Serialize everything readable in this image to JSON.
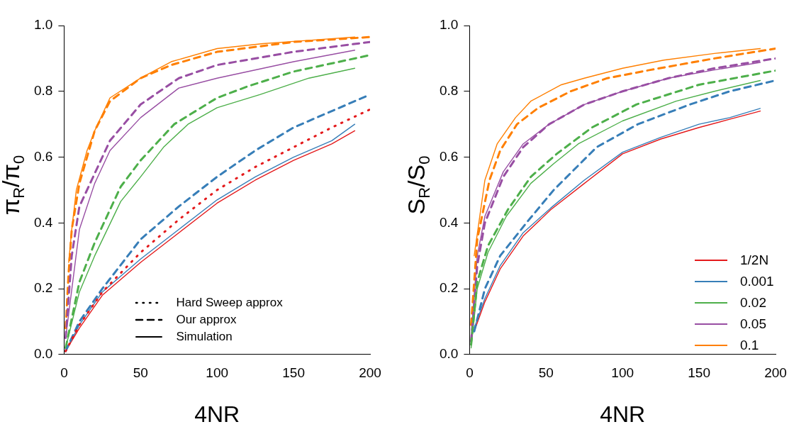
{
  "chart_data": [
    {
      "type": "line",
      "xlabel": "4NR",
      "ylabel": "π$_{R}$/π$_{0}$",
      "xlim": [
        0,
        200
      ],
      "xticks": [
        0,
        50,
        100,
        150,
        200
      ],
      "ylim": [
        0,
        1
      ],
      "yticks": [
        {
          "value": 0,
          "label": "0.0"
        },
        {
          "value": 0.2,
          "label": "0.2"
        },
        {
          "value": 0.4,
          "label": "0.4"
        },
        {
          "value": 0.6,
          "label": "0.6"
        },
        {
          "value": 0.8,
          "label": "0.8"
        },
        {
          "value": 1,
          "label": "1.0"
        }
      ],
      "grid": false,
      "legend": false,
      "marker": "none",
      "annotations": [
        "Hard Sweep approx",
        "Our approx",
        "Simulation"
      ],
      "series": [
        {
          "color": "#e41a1c",
          "line_style": "dotted",
          "x": [
            1,
            10,
            25,
            50,
            75,
            100,
            125,
            150,
            175,
            200
          ],
          "values": [
            0.01,
            0.09,
            0.19,
            0.31,
            0.41,
            0.5,
            0.57,
            0.63,
            0.69,
            0.745
          ]
        },
        {
          "color": "#377eb8",
          "line_style": "dashed",
          "x": [
            1,
            10,
            25,
            50,
            75,
            100,
            125,
            150,
            175,
            200
          ],
          "values": [
            0.01,
            0.1,
            0.2,
            0.35,
            0.45,
            0.54,
            0.62,
            0.69,
            0.74,
            0.79
          ]
        },
        {
          "color": "#4daf4a",
          "line_style": "dashed",
          "x": [
            1,
            10,
            20,
            37,
            50,
            72,
            100,
            120,
            150,
            200
          ],
          "values": [
            0.02,
            0.22,
            0.34,
            0.51,
            0.59,
            0.7,
            0.78,
            0.815,
            0.86,
            0.91
          ]
        },
        {
          "color": "#984ea3",
          "line_style": "dashed",
          "x": [
            1,
            5,
            10,
            20,
            30,
            50,
            75,
            100,
            150,
            200
          ],
          "values": [
            0.05,
            0.3,
            0.45,
            0.55,
            0.65,
            0.76,
            0.84,
            0.88,
            0.92,
            0.95
          ]
        },
        {
          "color": "#ff7f00",
          "line_style": "dashed",
          "x": [
            1,
            3,
            5,
            10,
            20,
            30,
            50,
            70,
            100,
            150,
            200
          ],
          "values": [
            0.08,
            0.25,
            0.38,
            0.52,
            0.68,
            0.77,
            0.84,
            0.88,
            0.92,
            0.95,
            0.965
          ]
        },
        {
          "color": "#e41a1c",
          "line_style": "solid",
          "x": [
            1,
            10,
            25,
            50,
            75,
            100,
            125,
            150,
            175,
            190
          ],
          "values": [
            0.01,
            0.08,
            0.18,
            0.28,
            0.37,
            0.46,
            0.53,
            0.59,
            0.64,
            0.68
          ]
        },
        {
          "color": "#377eb8",
          "line_style": "solid",
          "x": [
            1,
            10,
            25,
            50,
            75,
            100,
            125,
            150,
            175,
            190
          ],
          "values": [
            0.01,
            0.09,
            0.19,
            0.29,
            0.38,
            0.47,
            0.54,
            0.6,
            0.65,
            0.7
          ]
        },
        {
          "color": "#4daf4a",
          "line_style": "solid",
          "x": [
            1,
            10,
            20,
            37,
            50,
            65,
            81,
            100,
            128,
            160,
            190
          ],
          "values": [
            0.02,
            0.19,
            0.3,
            0.465,
            0.54,
            0.63,
            0.7,
            0.75,
            0.79,
            0.84,
            0.87
          ]
        },
        {
          "color": "#984ea3",
          "line_style": "solid",
          "x": [
            1,
            10,
            20,
            30,
            50,
            75,
            100,
            150,
            190
          ],
          "values": [
            0.05,
            0.38,
            0.52,
            0.62,
            0.72,
            0.81,
            0.84,
            0.89,
            0.925
          ]
        },
        {
          "color": "#ff7f00",
          "line_style": "solid",
          "x": [
            3,
            5,
            8,
            15,
            20,
            30,
            50,
            70,
            100,
            130,
            160,
            190
          ],
          "values": [
            0.28,
            0.38,
            0.5,
            0.62,
            0.68,
            0.78,
            0.84,
            0.89,
            0.93,
            0.945,
            0.955,
            0.965
          ]
        }
      ]
    },
    {
      "type": "line",
      "xlabel": "4NR",
      "ylabel": "S$_{R}$/S$_{0}$",
      "xlim": [
        0,
        200
      ],
      "xticks": [
        0,
        50,
        100,
        150,
        200
      ],
      "ylim": [
        0,
        1
      ],
      "yticks": [
        {
          "value": 0,
          "label": "0.0"
        },
        {
          "value": 0.2,
          "label": "0.2"
        },
        {
          "value": 0.4,
          "label": "0.4"
        },
        {
          "value": 0.6,
          "label": "0.6"
        },
        {
          "value": 0.8,
          "label": "0.8"
        },
        {
          "value": 1,
          "label": "1.0"
        }
      ],
      "grid": false,
      "legend": "bottom right",
      "marker": "none",
      "series": [
        {
          "color": "#377eb8",
          "line_style": "dashed",
          "x": [
            3,
            10,
            20,
            38,
            55,
            83,
            110,
            144,
            170,
            200
          ],
          "values": [
            0.07,
            0.2,
            0.3,
            0.405,
            0.5,
            0.63,
            0.7,
            0.76,
            0.8,
            0.833
          ]
        },
        {
          "color": "#4daf4a",
          "line_style": "dashed",
          "x": [
            1,
            5,
            12,
            25,
            40,
            57,
            80,
            109,
            150,
            200
          ],
          "values": [
            0.03,
            0.22,
            0.33,
            0.44,
            0.54,
            0.61,
            0.69,
            0.76,
            0.82,
            0.863
          ]
        },
        {
          "color": "#984ea3",
          "line_style": "dashed",
          "x": [
            1,
            5,
            10,
            22,
            35,
            52,
            75,
            100,
            130,
            160,
            200
          ],
          "values": [
            0.04,
            0.27,
            0.4,
            0.54,
            0.63,
            0.7,
            0.76,
            0.8,
            0.84,
            0.87,
            0.9
          ]
        },
        {
          "color": "#ff7f00",
          "line_style": "dashed",
          "x": [
            1,
            5,
            13,
            20,
            31,
            45,
            66,
            90,
            118,
            160,
            200
          ],
          "values": [
            0.09,
            0.35,
            0.53,
            0.62,
            0.7,
            0.75,
            0.8,
            0.84,
            0.865,
            0.9,
            0.93
          ]
        },
        {
          "name": "1/2N",
          "color": "#e41a1c",
          "line_style": "solid",
          "x": [
            3,
            10,
            20,
            35,
            53,
            75,
            100,
            125,
            150,
            170,
            190
          ],
          "values": [
            0.07,
            0.16,
            0.26,
            0.36,
            0.44,
            0.52,
            0.61,
            0.655,
            0.69,
            0.715,
            0.74
          ]
        },
        {
          "name": "0.001",
          "color": "#377eb8",
          "line_style": "solid",
          "x": [
            3,
            10,
            20,
            35,
            53,
            75,
            100,
            125,
            150,
            170,
            190
          ],
          "values": [
            0.08,
            0.17,
            0.27,
            0.37,
            0.445,
            0.53,
            0.615,
            0.66,
            0.7,
            0.72,
            0.748
          ]
        },
        {
          "name": "0.02",
          "color": "#4daf4a",
          "line_style": "solid",
          "x": [
            1,
            5,
            12,
            24,
            40,
            55,
            71,
            100,
            135,
            160,
            190
          ],
          "values": [
            0.02,
            0.2,
            0.31,
            0.42,
            0.52,
            0.58,
            0.64,
            0.71,
            0.77,
            0.8,
            0.833
          ]
        },
        {
          "name": "0.05",
          "color": "#984ea3",
          "line_style": "solid",
          "x": [
            1,
            5,
            10,
            22,
            35,
            52,
            75,
            100,
            130,
            160,
            190
          ],
          "values": [
            0.05,
            0.3,
            0.42,
            0.555,
            0.64,
            0.7,
            0.76,
            0.8,
            0.84,
            0.865,
            0.888
          ]
        },
        {
          "name": "0.1",
          "color": "#ff7f00",
          "line_style": "solid",
          "x": [
            3,
            10,
            18,
            30,
            40,
            60,
            75,
            100,
            127,
            160,
            190
          ],
          "values": [
            0.3,
            0.53,
            0.64,
            0.72,
            0.77,
            0.82,
            0.84,
            0.87,
            0.895,
            0.915,
            0.93
          ]
        }
      ]
    }
  ]
}
